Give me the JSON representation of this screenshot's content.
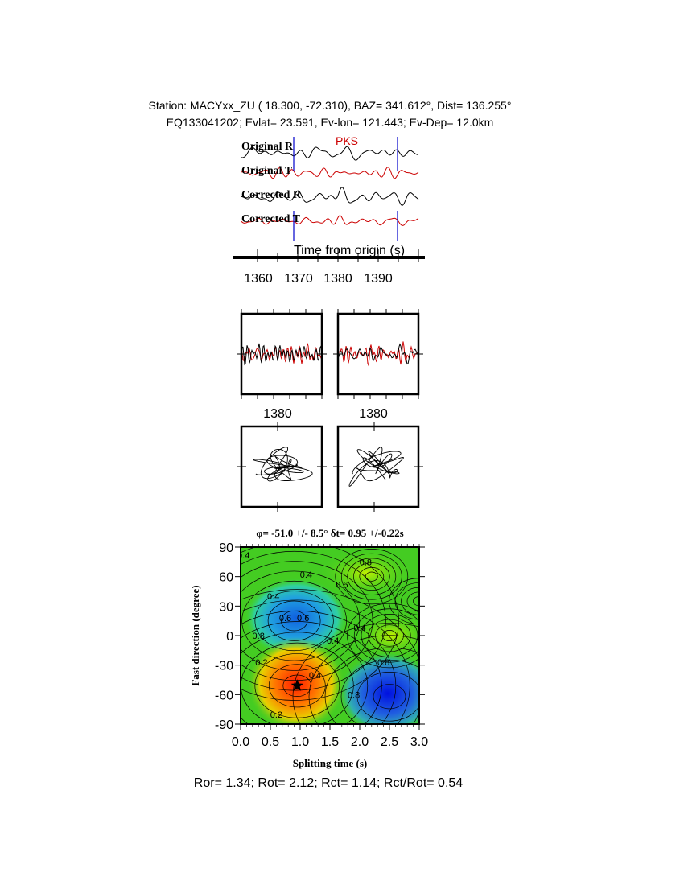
{
  "header": {
    "line1": "Station: MACYxx_ZU (  18.300,  -72.310), BAZ=  341.612°, Dist=  136.255°",
    "line2": "EQ133041202; Evlat=  23.591, Ev-lon= 121.443; Ev-Dep= 12.0km"
  },
  "chart_data": [
    {
      "type": "line",
      "phase_label": "PKS",
      "traces": [
        "Original R",
        "Original T",
        "Corrected R",
        "Corrected T"
      ],
      "trace_colors": [
        "#000000",
        "#cc0000",
        "#000000",
        "#cc0000"
      ],
      "xlabel": "Time from origin (s)",
      "xticks": [
        "1360",
        "1370",
        "1380",
        "1390"
      ],
      "xlim": [
        1356,
        1401
      ],
      "window_markers_s": [
        1369,
        1394.8
      ],
      "marker_color": "#0000cc"
    },
    {
      "type": "line",
      "panels": [
        "original-RT",
        "corrected-RT"
      ],
      "xticks": [
        "1380",
        "1380"
      ]
    },
    {
      "type": "line",
      "panels": [
        "original-particle-motion",
        "corrected-particle-motion"
      ]
    },
    {
      "type": "heatmap",
      "title": "φ= -51.0 +/- 8.5° δt= 0.95 +/-0.22s",
      "xlabel": "Splitting time (s)",
      "ylabel": "Fast direction (degree)",
      "xticks": [
        "0.0",
        "0.5",
        "1.0",
        "1.5",
        "2.0",
        "2.5",
        "3.0"
      ],
      "yticks": [
        "90",
        "60",
        "30",
        "0",
        "-30",
        "-60",
        "-90"
      ],
      "xlim": [
        0,
        3
      ],
      "ylim": [
        -90,
        90
      ],
      "best_fit": {
        "dt": 0.95,
        "phi": -51
      },
      "contour_labels": [
        "0.4",
        "0.4",
        "0.4",
        "0.6",
        "0.8",
        "0.8",
        "0.6",
        "0.6",
        "0.4",
        "0.4",
        "0.2",
        "0.4",
        "0.8",
        "0.8",
        "0.2"
      ],
      "colors": {
        "low": "#ff2000",
        "mid": "#40d020",
        "high": "#0010e0"
      }
    }
  ],
  "footer": "Ror= 1.34; Rot= 2.12; Rct= 1.14; Rct/Rot= 0.54"
}
